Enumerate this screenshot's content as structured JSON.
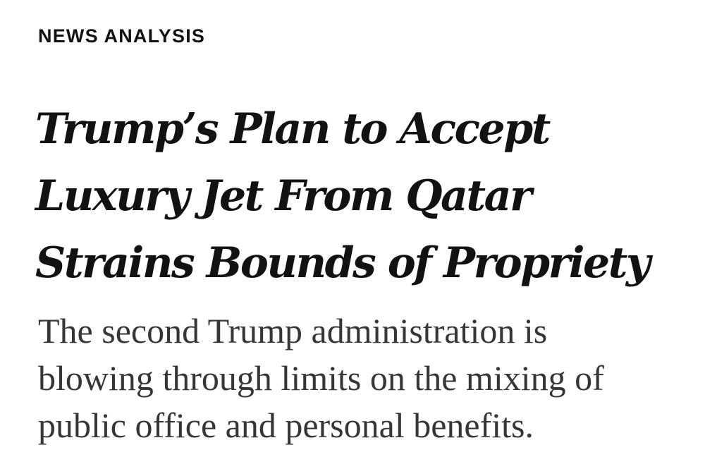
{
  "article": {
    "kicker": "NEWS ANALYSIS",
    "headline_lines": [
      "Trump’s Plan to Accept",
      "Luxury Jet From Qatar",
      "Strains Bounds of Propriety"
    ],
    "summary_lines": [
      "The second Trump administration is",
      "blowing through limits on the mixing of",
      "public office and personal benefits."
    ]
  },
  "colors": {
    "text": "#121212",
    "summary_text": "#363636",
    "background": "#ffffff"
  }
}
